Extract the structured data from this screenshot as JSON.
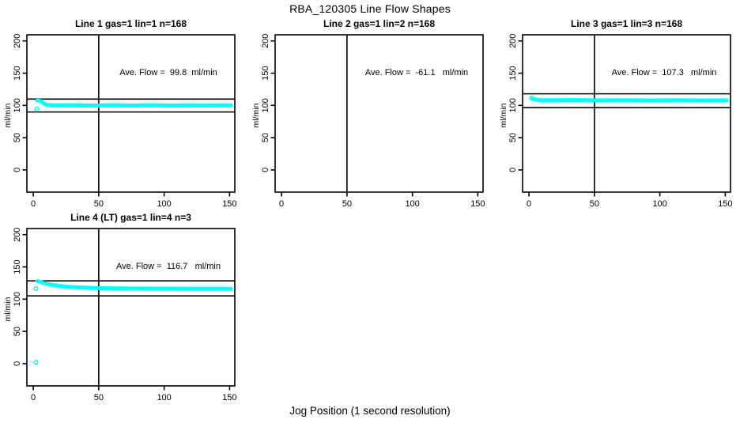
{
  "figure": {
    "title": "RBA_120305  Line Flow Shapes",
    "xlabel": "Jog Position (1 second resolution)",
    "background_color": "#ffffff",
    "axis_color": "#000000",
    "point_color": "#00ffff"
  },
  "chart_data": [
    {
      "type": "scatter",
      "title": "Line 1 gas=1 lin=1 n=168",
      "ylabel": "ml/min",
      "ave_flow_ml_min": 99.8,
      "ave_flow_label": "Ave. Flow =  99.8  ml/min",
      "xlim": [
        -4.9,
        154
      ],
      "ylim": [
        -34.5,
        209.5
      ],
      "x_ticks": [
        0,
        50,
        100,
        150
      ],
      "y_ticks": [
        0,
        50,
        100,
        150,
        200
      ],
      "vline_x": 50,
      "ref_lines": [
        109.8,
        89.8
      ],
      "band": [
        [
          3,
          107.5
        ],
        [
          4.5,
          107.5
        ],
        [
          6,
          106
        ],
        [
          7,
          104.5
        ],
        [
          8,
          103
        ],
        [
          9.5,
          101.5
        ],
        [
          11,
          100.5
        ],
        [
          14,
          100
        ],
        [
          30,
          100.2
        ],
        [
          45,
          99.8
        ],
        [
          60,
          100.2
        ],
        [
          75,
          99.8
        ],
        [
          90,
          100.2
        ],
        [
          105,
          99.8
        ],
        [
          120,
          100.1
        ],
        [
          135,
          99.9
        ],
        [
          151,
          100
        ]
      ],
      "markers": [
        [
          2.5,
          94
        ]
      ]
    },
    {
      "type": "scatter",
      "title": "Line 2 gas=1 lin=2 n=168",
      "ylabel": "ml/min",
      "ave_flow_ml_min": -61.1,
      "ave_flow_label": "Ave. Flow =  -61.1   ml/min",
      "xlim": [
        -4.9,
        154
      ],
      "ylim": [
        -34.5,
        209.5
      ],
      "x_ticks": [
        0,
        50,
        100,
        150
      ],
      "y_ticks": [
        0,
        50,
        100,
        150,
        200
      ],
      "vline_x": 50,
      "ref_lines": [],
      "band": [],
      "markers": []
    },
    {
      "type": "scatter",
      "title": "Line 3 gas=1 lin=3 n=168",
      "ylabel": "ml/min",
      "ave_flow_ml_min": 107.3,
      "ave_flow_label": "Ave. Flow =  107.3   ml/min",
      "xlim": [
        -4.9,
        154
      ],
      "ylim": [
        -34.5,
        209.5
      ],
      "x_ticks": [
        0,
        50,
        100,
        150
      ],
      "y_ticks": [
        0,
        50,
        100,
        150,
        200
      ],
      "vline_x": 50,
      "ref_lines": [
        118.0,
        96.6
      ],
      "band": [
        [
          3,
          110
        ],
        [
          5,
          109
        ],
        [
          8,
          108.3
        ],
        [
          15,
          108
        ],
        [
          35,
          108.2
        ],
        [
          55,
          107.8
        ],
        [
          75,
          108.1
        ],
        [
          95,
          107.7
        ],
        [
          115,
          108
        ],
        [
          135,
          107.7
        ],
        [
          151,
          107.8
        ]
      ],
      "markers": [
        [
          2,
          111.5
        ]
      ]
    },
    {
      "type": "scatter",
      "title": "Line 4 (LT) gas=1 lin=4 n=3",
      "ylabel": "ml/min",
      "ave_flow_ml_min": 116.7,
      "ave_flow_label": "Ave. Flow =  116.7   ml/min",
      "xlim": [
        -4.9,
        154
      ],
      "ylim": [
        -34.5,
        209.5
      ],
      "x_ticks": [
        0,
        50,
        100,
        150
      ],
      "y_ticks": [
        0,
        50,
        100,
        150,
        200
      ],
      "vline_x": 50,
      "ref_lines": [
        128.4,
        105.0
      ],
      "band": [
        [
          3,
          128
        ],
        [
          4,
          127.5
        ],
        [
          6,
          126.2
        ],
        [
          8,
          124.8
        ],
        [
          11,
          123.3
        ],
        [
          15,
          121.8
        ],
        [
          20,
          120.4
        ],
        [
          26,
          119.2
        ],
        [
          33,
          118.3
        ],
        [
          42,
          117.6
        ],
        [
          52,
          117.1
        ],
        [
          65,
          116.7
        ],
        [
          80,
          116.4
        ],
        [
          100,
          116.2
        ],
        [
          125,
          116
        ],
        [
          151,
          115.9
        ]
      ],
      "markers": [
        [
          2,
          116.5
        ],
        [
          2,
          2
        ]
      ]
    }
  ]
}
